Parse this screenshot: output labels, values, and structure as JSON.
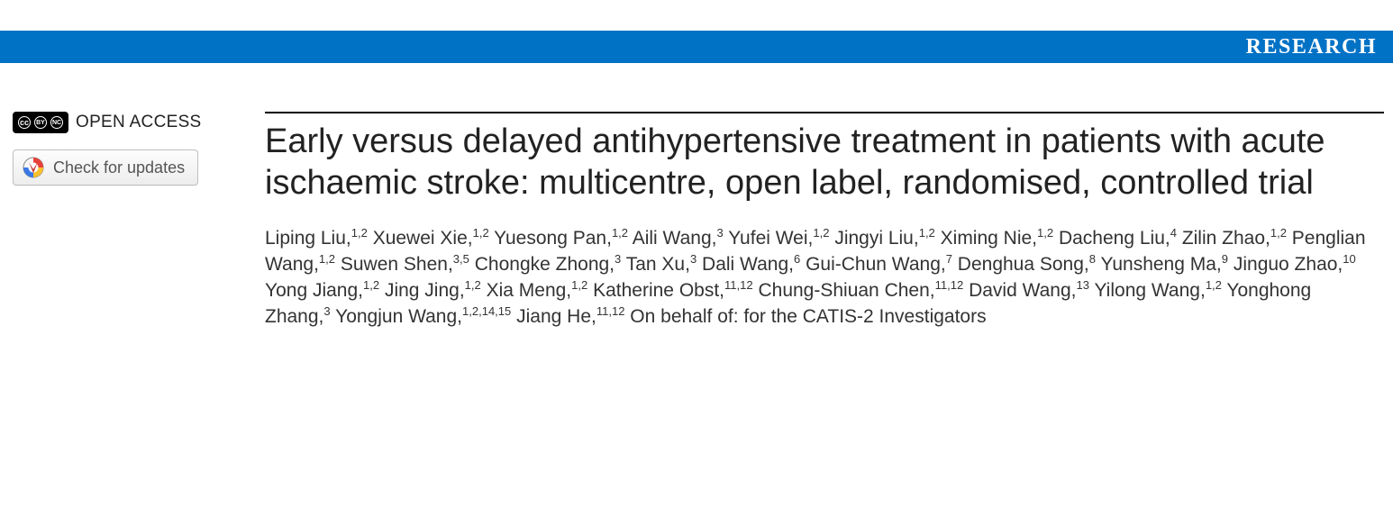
{
  "banner": {
    "label": "RESEARCH",
    "bg": "#0072c6",
    "fg": "#ffffff"
  },
  "sidebar": {
    "open_access_label": "OPEN ACCESS",
    "cc_glyphs": [
      "cc",
      "BY",
      "NC"
    ],
    "updates_button_label": "Check for updates"
  },
  "article": {
    "title": "Early versus delayed antihypertensive treatment in patients with acute ischaemic stroke: multicentre, open label, randomised, controlled trial",
    "authors": [
      {
        "name": "Liping Liu",
        "aff": "1,2"
      },
      {
        "name": "Xuewei Xie",
        "aff": "1,2"
      },
      {
        "name": "Yuesong Pan",
        "aff": "1,2"
      },
      {
        "name": "Aili Wang",
        "aff": "3"
      },
      {
        "name": "Yufei Wei",
        "aff": "1,2"
      },
      {
        "name": "Jingyi Liu",
        "aff": "1,2"
      },
      {
        "name": "Ximing Nie",
        "aff": "1,2"
      },
      {
        "name": "Dacheng Liu",
        "aff": "4"
      },
      {
        "name": "Zilin Zhao",
        "aff": "1,2"
      },
      {
        "name": "Penglian Wang",
        "aff": "1,2"
      },
      {
        "name": "Suwen Shen",
        "aff": "3,5"
      },
      {
        "name": "Chongke Zhong",
        "aff": "3"
      },
      {
        "name": "Tan Xu",
        "aff": "3"
      },
      {
        "name": "Dali Wang",
        "aff": "6"
      },
      {
        "name": "Gui-Chun Wang",
        "aff": "7"
      },
      {
        "name": "Denghua Song",
        "aff": "8"
      },
      {
        "name": "Yunsheng Ma",
        "aff": "9"
      },
      {
        "name": "Jinguo Zhao",
        "aff": "10"
      },
      {
        "name": "Yong Jiang",
        "aff": "1,2"
      },
      {
        "name": "Jing Jing",
        "aff": "1,2"
      },
      {
        "name": "Xia Meng",
        "aff": "1,2"
      },
      {
        "name": "Katherine Obst",
        "aff": "11,12"
      },
      {
        "name": "Chung-Shiuan Chen",
        "aff": "11,12"
      },
      {
        "name": "David Wang",
        "aff": "13"
      },
      {
        "name": "Yilong Wang",
        "aff": "1,2"
      },
      {
        "name": "Yonghong Zhang",
        "aff": "3"
      },
      {
        "name": "Yongjun Wang",
        "aff": "1,2,14,15"
      },
      {
        "name": "Jiang He",
        "aff": "11,12"
      }
    ],
    "author_suffix": "On behalf of: for the CATIS-2 Investigators",
    "title_fontsize": 38,
    "author_fontsize": 21
  },
  "colors": {
    "rule": "#000000",
    "text": "#222222",
    "button_border": "#bfbfbf",
    "button_bg_top": "#fdfdfd",
    "button_bg_bottom": "#ededed"
  }
}
